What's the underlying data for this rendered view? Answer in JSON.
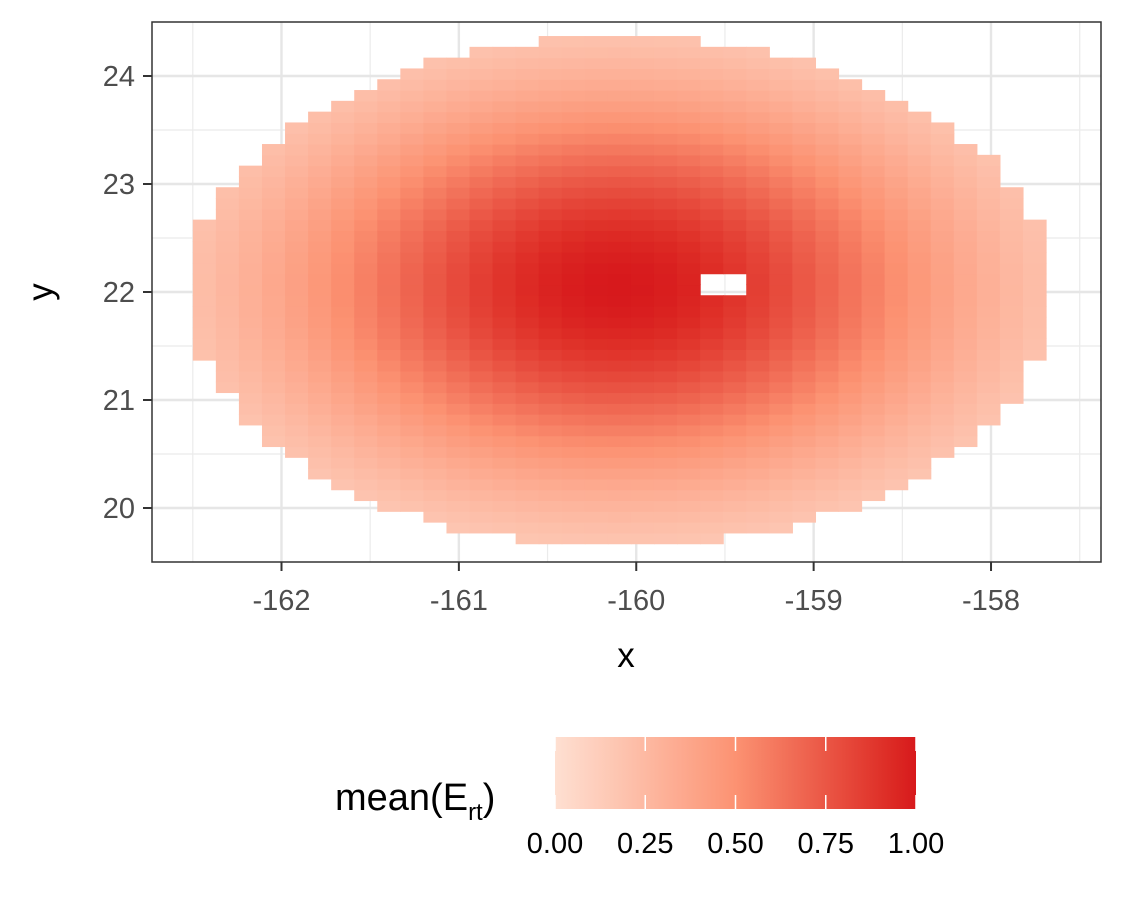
{
  "chart_data": {
    "type": "heatmap",
    "xlabel": "x",
    "ylabel": "y",
    "x_ticks": [
      -162,
      -161,
      -160,
      -159,
      -158
    ],
    "x_tick_labels": [
      "-162",
      "-161",
      "-160",
      "-159",
      "-158"
    ],
    "y_ticks": [
      20,
      21,
      22,
      23,
      24
    ],
    "y_tick_labels": [
      "20",
      "21",
      "22",
      "23",
      "24"
    ],
    "xlim": [
      -162.73,
      -157.38
    ],
    "ylim": [
      19.5,
      24.5
    ],
    "grid": true,
    "cell_size": [
      0.13,
      0.1
    ],
    "field": {
      "center": [
        -160.1,
        22.05
      ],
      "x_range": [
        -162.5,
        -157.68
      ],
      "y_range": [
        19.67,
        24.33
      ],
      "value_min": 0.04,
      "value_max": 1.0,
      "missing_block": {
        "x": [
          -159.62,
          -159.36
        ],
        "y": [
          21.93,
          22.17
        ]
      }
    },
    "legend": {
      "title": "mean(E",
      "title_subscript": "rt",
      "title_close": ")",
      "position": "bottom",
      "breaks": [
        0.0,
        0.25,
        0.5,
        0.75,
        1.0
      ],
      "labels": [
        "0.00",
        "0.25",
        "0.50",
        "0.75",
        "1.00"
      ],
      "limits": [
        0.0,
        1.0
      ],
      "low_color": "#fee0d2",
      "mid_color": "#fc9272",
      "high_color": "#de2d26",
      "top_color": "#d7191c"
    }
  }
}
